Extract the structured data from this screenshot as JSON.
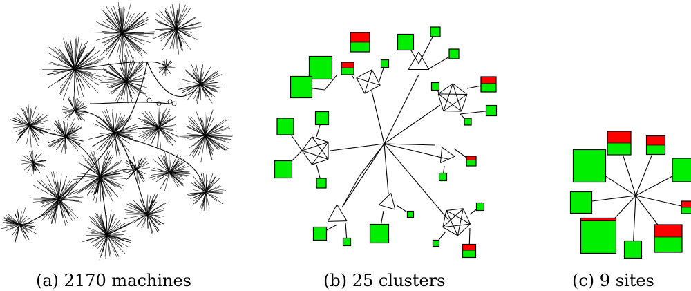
{
  "captions": {
    "machines": "(a) 2170 machines",
    "clusters": "(b) 25 clusters",
    "sites": "(c) 9 sites"
  },
  "colors": {
    "node_ok": "#00ee00",
    "node_alert": "#ff0000",
    "edge": "#000000"
  }
}
